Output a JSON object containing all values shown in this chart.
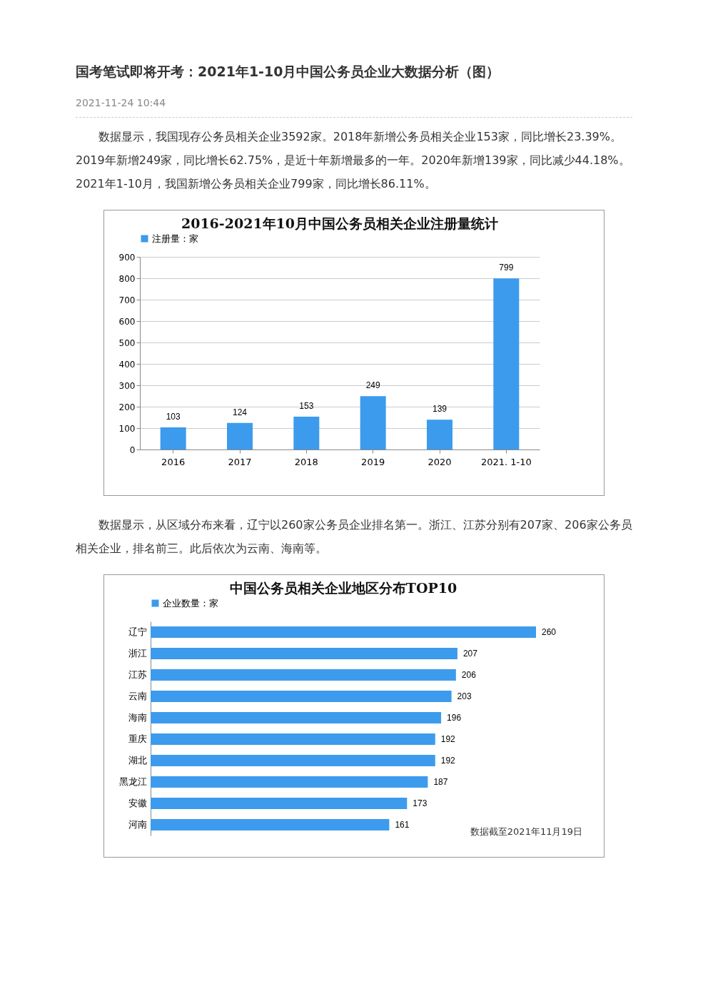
{
  "chart_data": [
    {
      "type": "bar",
      "title": "2016-2021年10月中国公务员相关企业注册量统计",
      "categories": [
        "2016",
        "2017",
        "2018",
        "2019",
        "2020",
        "2021. 1-10"
      ],
      "series": [
        {
          "name": "注册量：家",
          "color": "#3c9bec",
          "values": [
            103,
            124,
            153,
            249,
            139,
            799
          ]
        }
      ],
      "ylim": [
        0,
        900
      ],
      "yticks": [
        0,
        100,
        200,
        300,
        400,
        500,
        600,
        700,
        800,
        900
      ],
      "grid": "y",
      "legend": "top",
      "data_labels": true,
      "annotations": [
        "国考笔试即将开考：2021年1-10月中国公务员企业大数据分析（图）",
        "2021-11-24 10:44",
        "数据显示，我国现存公务员相关企业3592家。2018年新增公务员相关企业153家，同比增长23.39%。2019年新增249家，同比增长62.75%，是近十年新增最多的一年。2020年新增139家，同比减少44.18%。2021年1-10月，我国新增公务员相关企业799家，同比增长86.11%。"
      ]
    },
    {
      "type": "bar",
      "orientation": "horizontal",
      "title": "中国公务员相关企业地区分布TOP10",
      "categories": [
        "辽宁",
        "浙江",
        "江苏",
        "云南",
        "海南",
        "重庆",
        "湖北",
        "黑龙江",
        "安徽",
        "河南"
      ],
      "series": [
        {
          "name": "企业数量：家",
          "color": "#3c9bec",
          "values": [
            260,
            207,
            206,
            203,
            196,
            192,
            192,
            187,
            173,
            161
          ]
        }
      ],
      "legend": "top",
      "data_labels": true,
      "tick_labels": "y",
      "annotations": [
        "数据显示，从区域分布来看，辽宁以260家公务员企业排名第一。浙江、江苏分别有207家、206家公务员相关企业，排名前三。此后依次为云南、海南等。",
        "数据截至2021年11月19日"
      ]
    }
  ]
}
